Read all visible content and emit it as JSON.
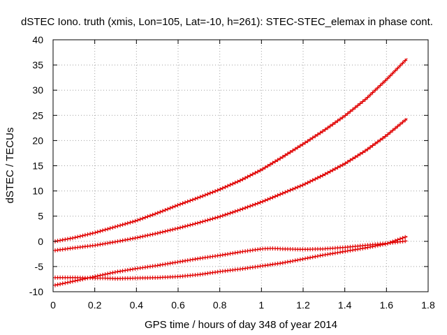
{
  "chart_data": {
    "type": "line",
    "title": "dSTEC Iono. truth (xmis, Lon=105, Lat=-10, h=261): STEC-STEC_elemax in phase cont.",
    "xlabel": "GPS time / hours of day 348 of year 2014",
    "ylabel": "dSTEC  / TECUs",
    "xlim": [
      0,
      1.8
    ],
    "ylim": [
      -10,
      40
    ],
    "xticks": [
      0,
      0.2,
      0.4,
      0.6,
      0.8,
      1,
      1.2,
      1.4,
      1.6,
      1.8
    ],
    "xtick_labels": [
      "0",
      "0.2",
      "0.4",
      "0.6",
      "0.8",
      "1",
      "1.2",
      "1.4",
      "1.6",
      "1.8"
    ],
    "yticks": [
      -10,
      -5,
      0,
      5,
      10,
      15,
      20,
      25,
      30,
      35,
      40
    ],
    "ytick_labels": [
      "-10",
      "-5",
      "0",
      "5",
      "10",
      "15",
      "20",
      "25",
      "30",
      "35",
      "40"
    ],
    "grid": true,
    "marker": "plus",
    "color": "#e00000",
    "series": [
      {
        "name": "series-1",
        "x": [
          0.01,
          0.1,
          0.2,
          0.3,
          0.4,
          0.5,
          0.6,
          0.7,
          0.8,
          0.9,
          1.0,
          1.1,
          1.2,
          1.3,
          1.4,
          1.5,
          1.6,
          1.7
        ],
        "y": [
          0.0,
          0.7,
          1.7,
          2.9,
          4.1,
          5.6,
          7.2,
          8.7,
          10.3,
          12.1,
          14.2,
          16.7,
          19.3,
          22.0,
          24.9,
          28.2,
          32.1,
          36.3
        ]
      },
      {
        "name": "series-2",
        "x": [
          0.01,
          0.1,
          0.2,
          0.3,
          0.4,
          0.5,
          0.6,
          0.7,
          0.8,
          0.9,
          1.0,
          1.1,
          1.2,
          1.3,
          1.4,
          1.5,
          1.6,
          1.7
        ],
        "y": [
          -1.8,
          -1.3,
          -0.8,
          -0.1,
          0.7,
          1.6,
          2.6,
          3.7,
          4.9,
          6.3,
          7.8,
          9.5,
          11.2,
          13.2,
          15.4,
          18.0,
          21.0,
          24.4
        ]
      },
      {
        "name": "series-3",
        "x": [
          0.01,
          0.1,
          0.2,
          0.3,
          0.4,
          0.5,
          0.6,
          0.7,
          0.8,
          0.9,
          1.0,
          1.05,
          1.1,
          1.2,
          1.3,
          1.4,
          1.5,
          1.6,
          1.7
        ],
        "y": [
          -8.7,
          -7.9,
          -7.0,
          -6.1,
          -5.4,
          -4.8,
          -4.1,
          -3.4,
          -2.8,
          -2.1,
          -1.5,
          -1.4,
          -1.5,
          -1.6,
          -1.5,
          -1.2,
          -0.8,
          -0.4,
          0.1
        ]
      },
      {
        "name": "series-4",
        "x": [
          0.01,
          0.1,
          0.2,
          0.25,
          0.3,
          0.4,
          0.5,
          0.6,
          0.7,
          0.8,
          0.9,
          1.0,
          1.1,
          1.2,
          1.3,
          1.4,
          1.5,
          1.6,
          1.7
        ],
        "y": [
          -7.2,
          -7.2,
          -7.3,
          -7.3,
          -7.4,
          -7.3,
          -7.2,
          -7.0,
          -6.6,
          -6.0,
          -5.5,
          -4.9,
          -4.3,
          -3.5,
          -2.7,
          -2.0,
          -1.3,
          -0.5,
          1.0
        ]
      }
    ]
  }
}
